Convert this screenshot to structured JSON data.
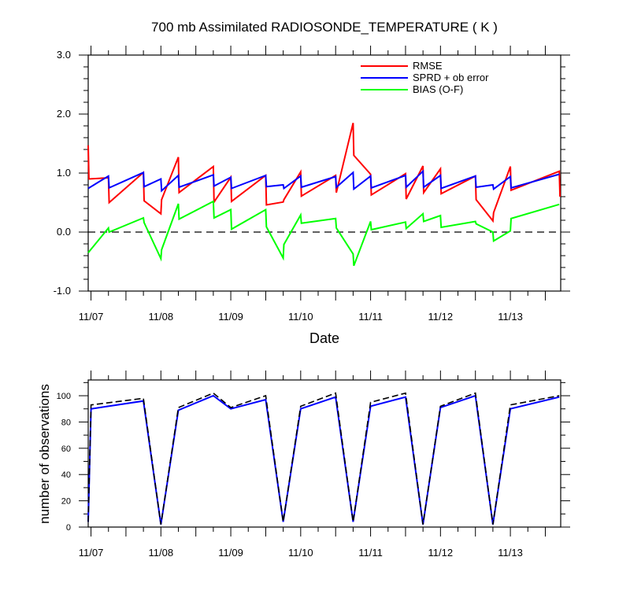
{
  "chart_data": [
    {
      "type": "line",
      "title": "700 mb Assimilated RADIOSONDE_TEMPERATURE ( K )",
      "xlabel": "Date",
      "ylabel": "",
      "x_tick_labels": [
        "11/07",
        "11/08",
        "11/09",
        "11/10",
        "11/11",
        "11/12",
        "11/13"
      ],
      "x_tick_positions": [
        1,
        2,
        3,
        4,
        5,
        6,
        7
      ],
      "xlim": [
        0.96,
        7.72
      ],
      "ylim": [
        -1.0,
        3.0
      ],
      "y_tick_labels": [
        "-1.0",
        "0.0",
        "1.0",
        "2.0",
        "3.0"
      ],
      "y_ticks": [
        -1,
        0,
        1,
        2,
        3
      ],
      "zero_line": true,
      "legend_position": "top-right",
      "series": [
        {
          "name": "RMSE",
          "color": "#ff0000",
          "x": [
            0.96,
            0.97,
            1.25,
            1.26,
            1.75,
            1.76,
            2.0,
            2.01,
            2.25,
            2.26,
            2.75,
            2.76,
            3.0,
            3.01,
            3.5,
            3.51,
            3.75,
            3.76,
            4.0,
            4.01,
            4.5,
            4.51,
            4.75,
            4.76,
            5.0,
            5.01,
            5.5,
            5.51,
            5.75,
            5.76,
            6.0,
            6.01,
            6.5,
            6.51,
            6.75,
            6.76,
            7.0,
            7.01,
            7.7,
            7.71
          ],
          "y": [
            1.47,
            0.9,
            0.92,
            0.5,
            1.01,
            0.53,
            0.31,
            0.55,
            1.27,
            0.67,
            1.11,
            0.51,
            0.93,
            0.52,
            0.96,
            0.46,
            0.51,
            0.55,
            1.02,
            0.61,
            0.96,
            0.67,
            1.85,
            1.3,
            0.98,
            0.63,
            0.99,
            0.56,
            1.12,
            0.67,
            1.07,
            0.65,
            0.95,
            0.55,
            0.19,
            0.33,
            1.11,
            0.71,
            1.03,
            0.6
          ]
        },
        {
          "name": "SPRD + ob error",
          "color": "#0000ff",
          "x": [
            0.96,
            1.25,
            1.26,
            1.75,
            1.76,
            2.0,
            2.01,
            2.25,
            2.26,
            2.75,
            2.76,
            3.0,
            3.01,
            3.5,
            3.51,
            3.75,
            3.76,
            4.0,
            4.01,
            4.5,
            4.51,
            4.75,
            4.76,
            5.0,
            5.01,
            5.5,
            5.51,
            5.75,
            5.76,
            6.0,
            6.01,
            6.5,
            6.51,
            6.75,
            6.76,
            7.0,
            7.01,
            7.7
          ],
          "y": [
            0.74,
            0.95,
            0.75,
            1.01,
            0.77,
            0.9,
            0.7,
            0.96,
            0.76,
            0.97,
            0.78,
            0.93,
            0.74,
            0.96,
            0.77,
            0.8,
            0.74,
            0.95,
            0.76,
            0.94,
            0.76,
            1.01,
            0.73,
            0.95,
            0.75,
            0.96,
            0.76,
            1.03,
            0.76,
            0.96,
            0.74,
            0.95,
            0.76,
            0.8,
            0.73,
            0.94,
            0.75,
            0.98
          ]
        },
        {
          "name": "BIAS (O-F)",
          "color": "#00ff00",
          "x": [
            0.96,
            1.25,
            1.26,
            1.75,
            1.76,
            2.0,
            2.01,
            2.25,
            2.26,
            2.75,
            2.76,
            3.0,
            3.01,
            3.5,
            3.51,
            3.75,
            3.76,
            4.0,
            4.01,
            4.5,
            4.51,
            4.75,
            4.76,
            5.0,
            5.01,
            5.5,
            5.51,
            5.75,
            5.76,
            6.0,
            6.01,
            6.5,
            6.51,
            6.75,
            6.76,
            7.0,
            7.01,
            7.7
          ],
          "y": [
            -0.35,
            0.07,
            0.0,
            0.24,
            0.16,
            -0.45,
            -0.3,
            0.48,
            0.22,
            0.52,
            0.24,
            0.38,
            0.05,
            0.38,
            0.09,
            -0.44,
            -0.21,
            0.29,
            0.15,
            0.23,
            0.07,
            -0.37,
            -0.57,
            0.18,
            0.04,
            0.17,
            0.06,
            0.31,
            0.18,
            0.28,
            0.08,
            0.18,
            0.14,
            0.0,
            -0.15,
            0.02,
            0.23,
            0.47
          ]
        }
      ]
    },
    {
      "type": "line",
      "title": "",
      "xlabel": "",
      "ylabel": "number of observations",
      "x_tick_labels": [
        "11/07",
        "11/08",
        "11/09",
        "11/10",
        "11/11",
        "11/12",
        "11/13"
      ],
      "x_tick_positions": [
        1,
        2,
        3,
        4,
        5,
        6,
        7
      ],
      "xlim": [
        0.96,
        7.72
      ],
      "ylim": [
        0,
        112
      ],
      "y_tick_labels": [
        "0",
        "20",
        "40",
        "60",
        "80",
        "100"
      ],
      "y_ticks": [
        0,
        20,
        40,
        60,
        80,
        100
      ],
      "series": [
        {
          "name": "",
          "color": "#0000ff",
          "x": [
            0.96,
            1.0,
            1.75,
            2.0,
            2.25,
            2.75,
            3.0,
            3.5,
            3.75,
            4.0,
            4.5,
            4.75,
            5.0,
            5.5,
            5.75,
            6.0,
            6.5,
            6.75,
            7.0,
            7.7
          ],
          "y": [
            4,
            90,
            96,
            2,
            89,
            100,
            90,
            97,
            4,
            90,
            99,
            4,
            92,
            99,
            2,
            91,
            100,
            2,
            90,
            99
          ]
        },
        {
          "name": "",
          "color": "#000000",
          "dashed": true,
          "x": [
            0.96,
            1.0,
            1.75,
            2.0,
            2.25,
            2.75,
            3.0,
            3.5,
            3.75,
            4.0,
            4.5,
            4.75,
            5.0,
            5.5,
            5.75,
            6.0,
            6.5,
            6.75,
            7.0,
            7.7
          ],
          "y": [
            4,
            93,
            98,
            2,
            91,
            102,
            91,
            100,
            4,
            92,
            102,
            4,
            95,
            102,
            2,
            92,
            102,
            2,
            93,
            100
          ]
        }
      ]
    }
  ]
}
